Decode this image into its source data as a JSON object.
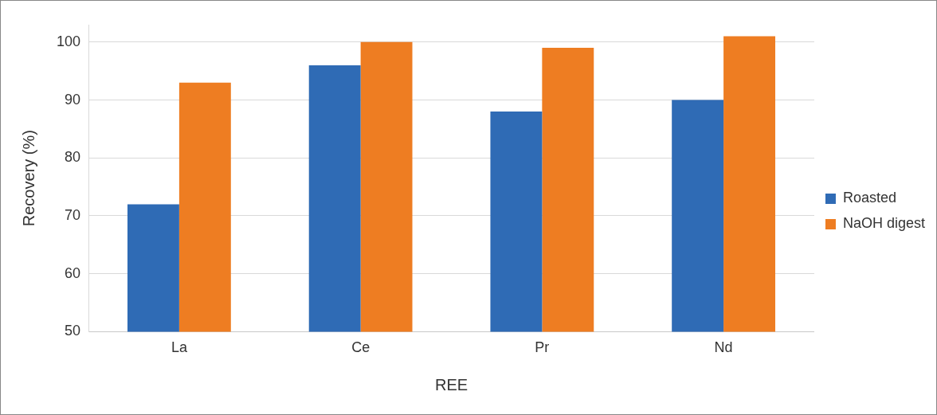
{
  "chart_data": {
    "type": "bar",
    "xlabel": "REE",
    "ylabel": "Recovery (%)",
    "categories": [
      "La",
      "Ce",
      "Pr",
      "Nd"
    ],
    "series": [
      {
        "name": "Roasted",
        "color": "#2f6bb5",
        "values": [
          72,
          96,
          88,
          90
        ]
      },
      {
        "name": "NaOH digest",
        "color": "#ee7d22",
        "values": [
          93,
          100,
          99,
          101
        ]
      }
    ],
    "ylim": [
      50,
      103
    ],
    "yticks": [
      50,
      60,
      70,
      80,
      90,
      100
    ],
    "grid": "y",
    "legend": "right"
  }
}
